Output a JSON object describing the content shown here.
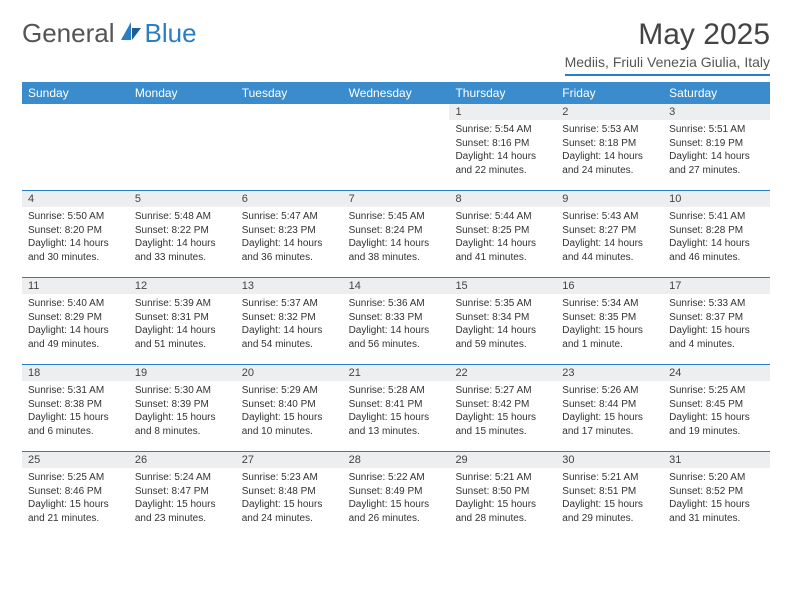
{
  "logo": {
    "part1": "General",
    "part2": "Blue"
  },
  "title": "May 2025",
  "location": "Mediis, Friuli Venezia Giulia, Italy",
  "colors": {
    "header_bg": "#3b8ccc",
    "accent": "#2a7ec4",
    "daynum_bg": "#eceeef",
    "text": "#333333",
    "background": "#ffffff"
  },
  "day_names": [
    "Sunday",
    "Monday",
    "Tuesday",
    "Wednesday",
    "Thursday",
    "Friday",
    "Saturday"
  ],
  "weeks": [
    [
      {
        "empty": true
      },
      {
        "empty": true
      },
      {
        "empty": true
      },
      {
        "empty": true
      },
      {
        "n": "1",
        "sr": "Sunrise: 5:54 AM",
        "ss": "Sunset: 8:16 PM",
        "d1": "Daylight: 14 hours",
        "d2": "and 22 minutes."
      },
      {
        "n": "2",
        "sr": "Sunrise: 5:53 AM",
        "ss": "Sunset: 8:18 PM",
        "d1": "Daylight: 14 hours",
        "d2": "and 24 minutes."
      },
      {
        "n": "3",
        "sr": "Sunrise: 5:51 AM",
        "ss": "Sunset: 8:19 PM",
        "d1": "Daylight: 14 hours",
        "d2": "and 27 minutes."
      }
    ],
    [
      {
        "n": "4",
        "sr": "Sunrise: 5:50 AM",
        "ss": "Sunset: 8:20 PM",
        "d1": "Daylight: 14 hours",
        "d2": "and 30 minutes."
      },
      {
        "n": "5",
        "sr": "Sunrise: 5:48 AM",
        "ss": "Sunset: 8:22 PM",
        "d1": "Daylight: 14 hours",
        "d2": "and 33 minutes."
      },
      {
        "n": "6",
        "sr": "Sunrise: 5:47 AM",
        "ss": "Sunset: 8:23 PM",
        "d1": "Daylight: 14 hours",
        "d2": "and 36 minutes."
      },
      {
        "n": "7",
        "sr": "Sunrise: 5:45 AM",
        "ss": "Sunset: 8:24 PM",
        "d1": "Daylight: 14 hours",
        "d2": "and 38 minutes."
      },
      {
        "n": "8",
        "sr": "Sunrise: 5:44 AM",
        "ss": "Sunset: 8:25 PM",
        "d1": "Daylight: 14 hours",
        "d2": "and 41 minutes."
      },
      {
        "n": "9",
        "sr": "Sunrise: 5:43 AM",
        "ss": "Sunset: 8:27 PM",
        "d1": "Daylight: 14 hours",
        "d2": "and 44 minutes."
      },
      {
        "n": "10",
        "sr": "Sunrise: 5:41 AM",
        "ss": "Sunset: 8:28 PM",
        "d1": "Daylight: 14 hours",
        "d2": "and 46 minutes."
      }
    ],
    [
      {
        "n": "11",
        "sr": "Sunrise: 5:40 AM",
        "ss": "Sunset: 8:29 PM",
        "d1": "Daylight: 14 hours",
        "d2": "and 49 minutes."
      },
      {
        "n": "12",
        "sr": "Sunrise: 5:39 AM",
        "ss": "Sunset: 8:31 PM",
        "d1": "Daylight: 14 hours",
        "d2": "and 51 minutes."
      },
      {
        "n": "13",
        "sr": "Sunrise: 5:37 AM",
        "ss": "Sunset: 8:32 PM",
        "d1": "Daylight: 14 hours",
        "d2": "and 54 minutes."
      },
      {
        "n": "14",
        "sr": "Sunrise: 5:36 AM",
        "ss": "Sunset: 8:33 PM",
        "d1": "Daylight: 14 hours",
        "d2": "and 56 minutes."
      },
      {
        "n": "15",
        "sr": "Sunrise: 5:35 AM",
        "ss": "Sunset: 8:34 PM",
        "d1": "Daylight: 14 hours",
        "d2": "and 59 minutes."
      },
      {
        "n": "16",
        "sr": "Sunrise: 5:34 AM",
        "ss": "Sunset: 8:35 PM",
        "d1": "Daylight: 15 hours",
        "d2": "and 1 minute."
      },
      {
        "n": "17",
        "sr": "Sunrise: 5:33 AM",
        "ss": "Sunset: 8:37 PM",
        "d1": "Daylight: 15 hours",
        "d2": "and 4 minutes."
      }
    ],
    [
      {
        "n": "18",
        "sr": "Sunrise: 5:31 AM",
        "ss": "Sunset: 8:38 PM",
        "d1": "Daylight: 15 hours",
        "d2": "and 6 minutes."
      },
      {
        "n": "19",
        "sr": "Sunrise: 5:30 AM",
        "ss": "Sunset: 8:39 PM",
        "d1": "Daylight: 15 hours",
        "d2": "and 8 minutes."
      },
      {
        "n": "20",
        "sr": "Sunrise: 5:29 AM",
        "ss": "Sunset: 8:40 PM",
        "d1": "Daylight: 15 hours",
        "d2": "and 10 minutes."
      },
      {
        "n": "21",
        "sr": "Sunrise: 5:28 AM",
        "ss": "Sunset: 8:41 PM",
        "d1": "Daylight: 15 hours",
        "d2": "and 13 minutes."
      },
      {
        "n": "22",
        "sr": "Sunrise: 5:27 AM",
        "ss": "Sunset: 8:42 PM",
        "d1": "Daylight: 15 hours",
        "d2": "and 15 minutes."
      },
      {
        "n": "23",
        "sr": "Sunrise: 5:26 AM",
        "ss": "Sunset: 8:44 PM",
        "d1": "Daylight: 15 hours",
        "d2": "and 17 minutes."
      },
      {
        "n": "24",
        "sr": "Sunrise: 5:25 AM",
        "ss": "Sunset: 8:45 PM",
        "d1": "Daylight: 15 hours",
        "d2": "and 19 minutes."
      }
    ],
    [
      {
        "n": "25",
        "sr": "Sunrise: 5:25 AM",
        "ss": "Sunset: 8:46 PM",
        "d1": "Daylight: 15 hours",
        "d2": "and 21 minutes."
      },
      {
        "n": "26",
        "sr": "Sunrise: 5:24 AM",
        "ss": "Sunset: 8:47 PM",
        "d1": "Daylight: 15 hours",
        "d2": "and 23 minutes."
      },
      {
        "n": "27",
        "sr": "Sunrise: 5:23 AM",
        "ss": "Sunset: 8:48 PM",
        "d1": "Daylight: 15 hours",
        "d2": "and 24 minutes."
      },
      {
        "n": "28",
        "sr": "Sunrise: 5:22 AM",
        "ss": "Sunset: 8:49 PM",
        "d1": "Daylight: 15 hours",
        "d2": "and 26 minutes."
      },
      {
        "n": "29",
        "sr": "Sunrise: 5:21 AM",
        "ss": "Sunset: 8:50 PM",
        "d1": "Daylight: 15 hours",
        "d2": "and 28 minutes."
      },
      {
        "n": "30",
        "sr": "Sunrise: 5:21 AM",
        "ss": "Sunset: 8:51 PM",
        "d1": "Daylight: 15 hours",
        "d2": "and 29 minutes."
      },
      {
        "n": "31",
        "sr": "Sunrise: 5:20 AM",
        "ss": "Sunset: 8:52 PM",
        "d1": "Daylight: 15 hours",
        "d2": "and 31 minutes."
      }
    ]
  ]
}
